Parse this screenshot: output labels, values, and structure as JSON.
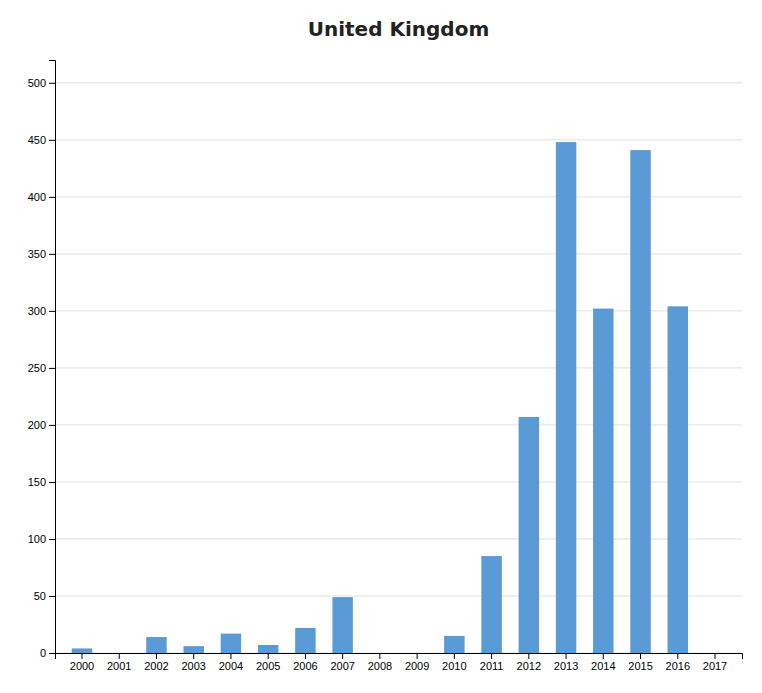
{
  "chart_data": {
    "type": "bar",
    "title": "United Kingdom",
    "categories": [
      "2000",
      "2001",
      "2002",
      "2003",
      "2004",
      "2005",
      "2006",
      "2007",
      "2008",
      "2009",
      "2010",
      "2011",
      "2012",
      "2013",
      "2014",
      "2015",
      "2016",
      "2017"
    ],
    "values": [
      4,
      0,
      14,
      6,
      17,
      7,
      22,
      49,
      0,
      0,
      15,
      85,
      207,
      448,
      302,
      441,
      304,
      0
    ],
    "color": "#5B9BD5",
    "ylim": [
      0,
      520
    ],
    "yticks": [
      0,
      50,
      100,
      150,
      200,
      250,
      300,
      350,
      400,
      450,
      500
    ],
    "grid": true
  }
}
